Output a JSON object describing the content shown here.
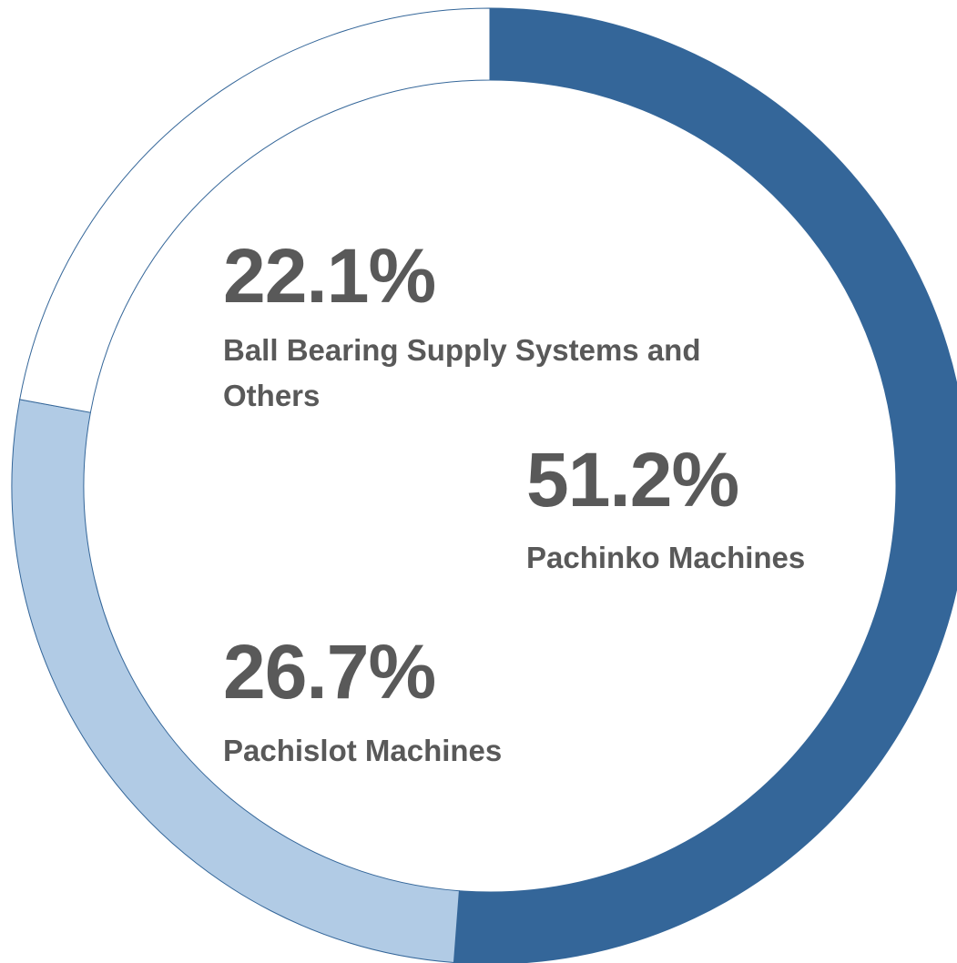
{
  "chart_data": {
    "type": "donut",
    "categories": [
      "Pachinko Machines",
      "Pachislot Machines",
      "Ball Bearing Supply Systems and Others"
    ],
    "values": [
      51.2,
      26.7,
      22.1
    ],
    "value_labels": [
      "51.2%",
      "26.7%",
      "22.1%"
    ],
    "colors": [
      "#346699",
      "#b1cbe5",
      "#ffffff"
    ],
    "stroke": "#346699"
  }
}
